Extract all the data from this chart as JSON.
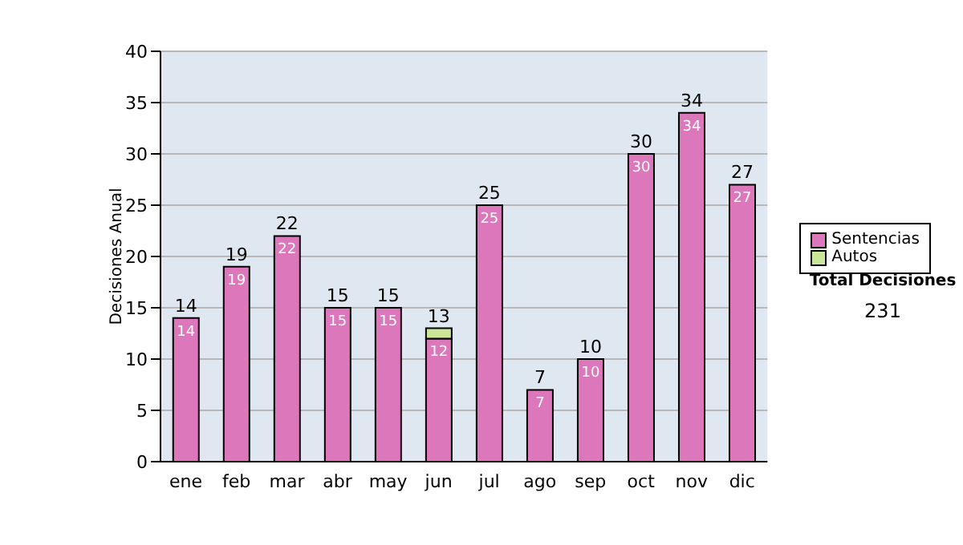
{
  "chart_data": {
    "type": "bar",
    "stacked": true,
    "ylabel": "Decisiones Anual",
    "categories": [
      "ene",
      "feb",
      "mar",
      "abr",
      "may",
      "jun",
      "jul",
      "ago",
      "sep",
      "oct",
      "nov",
      "dic"
    ],
    "series": [
      {
        "name": "Sentencias",
        "color": "#dd77bb",
        "values": [
          14,
          19,
          22,
          15,
          15,
          12,
          25,
          7,
          10,
          30,
          34,
          27
        ],
        "value_labels": [
          "14",
          "19",
          "22",
          "15",
          "15",
          "12",
          "25",
          "7",
          "10",
          "30",
          "34",
          "27"
        ]
      },
      {
        "name": "Autos",
        "color": "#cce699",
        "values": [
          null,
          null,
          null,
          null,
          null,
          1,
          null,
          null,
          null,
          null,
          null,
          null
        ]
      }
    ],
    "totals": [
      "14",
      "19",
      "22",
      "15",
      "15",
      "13",
      "25",
      "7",
      "10",
      "30",
      "34",
      "27"
    ],
    "ylim": [
      0,
      40
    ],
    "yticks": [
      0,
      5,
      10,
      15,
      20,
      25,
      30,
      35,
      40
    ],
    "grid": "y",
    "legend": "right",
    "annotations": [
      "Total Decisiones",
      "231"
    ]
  }
}
